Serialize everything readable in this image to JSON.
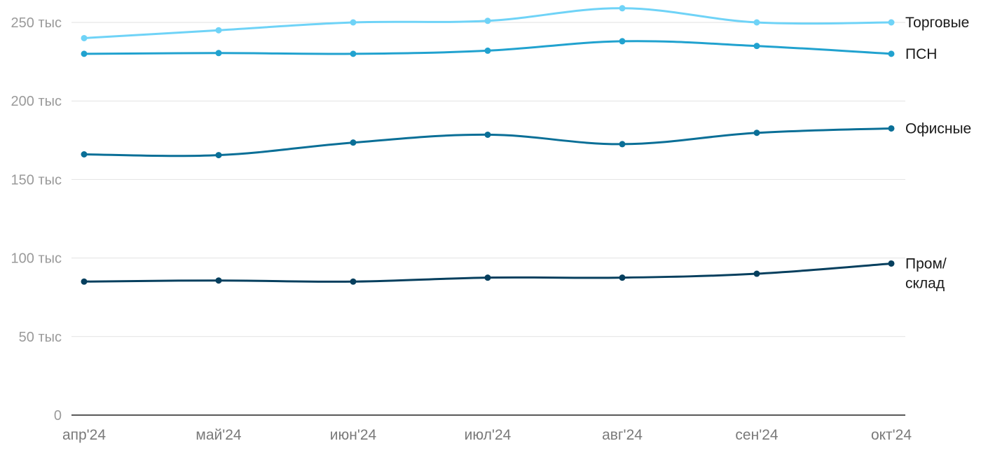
{
  "chart_data": {
    "type": "line",
    "categories": [
      "апр'24",
      "май'24",
      "июн'24",
      "июл'24",
      "авг'24",
      "сен'24",
      "окт'24"
    ],
    "ylim": [
      0,
      250000
    ],
    "yticks": [
      {
        "value": 0,
        "label": "0"
      },
      {
        "value": 50000,
        "label": "50 тыс"
      },
      {
        "value": 100000,
        "label": "100 тыс"
      },
      {
        "value": 150000,
        "label": "150 тыс"
      },
      {
        "value": 200000,
        "label": "200 тыс"
      },
      {
        "value": 250000,
        "label": "250 тыс"
      }
    ],
    "grid": true,
    "legend": "inline-right",
    "series": [
      {
        "name": "Торговые",
        "label_lines": [
          "Торговые"
        ],
        "color": "#6fd3f7",
        "values": [
          240000,
          245000,
          250000,
          251000,
          259000,
          250000,
          250000
        ]
      },
      {
        "name": "ПСН",
        "label_lines": [
          "ПСН"
        ],
        "color": "#21a2cf",
        "values": [
          230000,
          230500,
          230000,
          232000,
          238000,
          235000,
          230000
        ]
      },
      {
        "name": "Офисные",
        "label_lines": [
          "Офисные"
        ],
        "color": "#0a6f97",
        "values": [
          166000,
          165500,
          173500,
          178500,
          172500,
          179700,
          182500
        ]
      },
      {
        "name": "Пром/склад",
        "label_lines": [
          "Пром/",
          "склад"
        ],
        "color": "#063f5e",
        "values": [
          85000,
          85700,
          85000,
          87500,
          87500,
          90000,
          96500
        ]
      }
    ]
  }
}
